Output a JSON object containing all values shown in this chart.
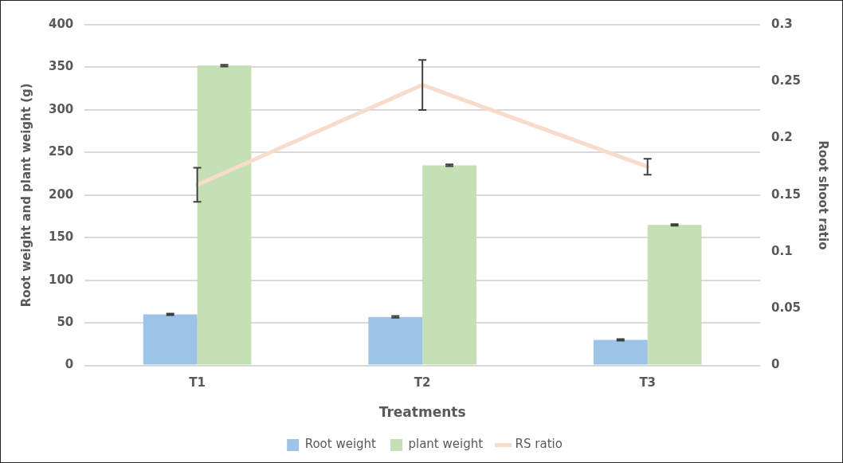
{
  "chart_data": {
    "type": "bar",
    "xlabel": "Treatments",
    "ylabel": "Root weight and plant weight (g)",
    "y2label": "Root shoot ratio",
    "categories": [
      "T1",
      "T2",
      "T3"
    ],
    "series": [
      {
        "name": "Root weight",
        "color": "#9dc3e6",
        "values": [
          60,
          57,
          30
        ],
        "errors": [
          1,
          1,
          1
        ]
      },
      {
        "name": "plant weight",
        "color": "#c5e0b4",
        "values": [
          352,
          235,
          165
        ],
        "errors": [
          1,
          1,
          1
        ]
      },
      {
        "name": "RS ratio",
        "type": "line",
        "axis": "y2",
        "color": "#f8dccb",
        "values": [
          0.159,
          0.247,
          0.175
        ],
        "errors": [
          0.015,
          0.022,
          0.007
        ]
      }
    ],
    "ylim": [
      0,
      400
    ],
    "yticks": [
      0,
      50,
      100,
      150,
      200,
      250,
      300,
      350,
      400
    ],
    "y2lim": [
      0,
      0.3
    ],
    "y2ticks": [
      0,
      0.05,
      0.1,
      0.15,
      0.2,
      0.25,
      0.3
    ],
    "grid": "y",
    "legend": "bottom",
    "marker": "none"
  }
}
